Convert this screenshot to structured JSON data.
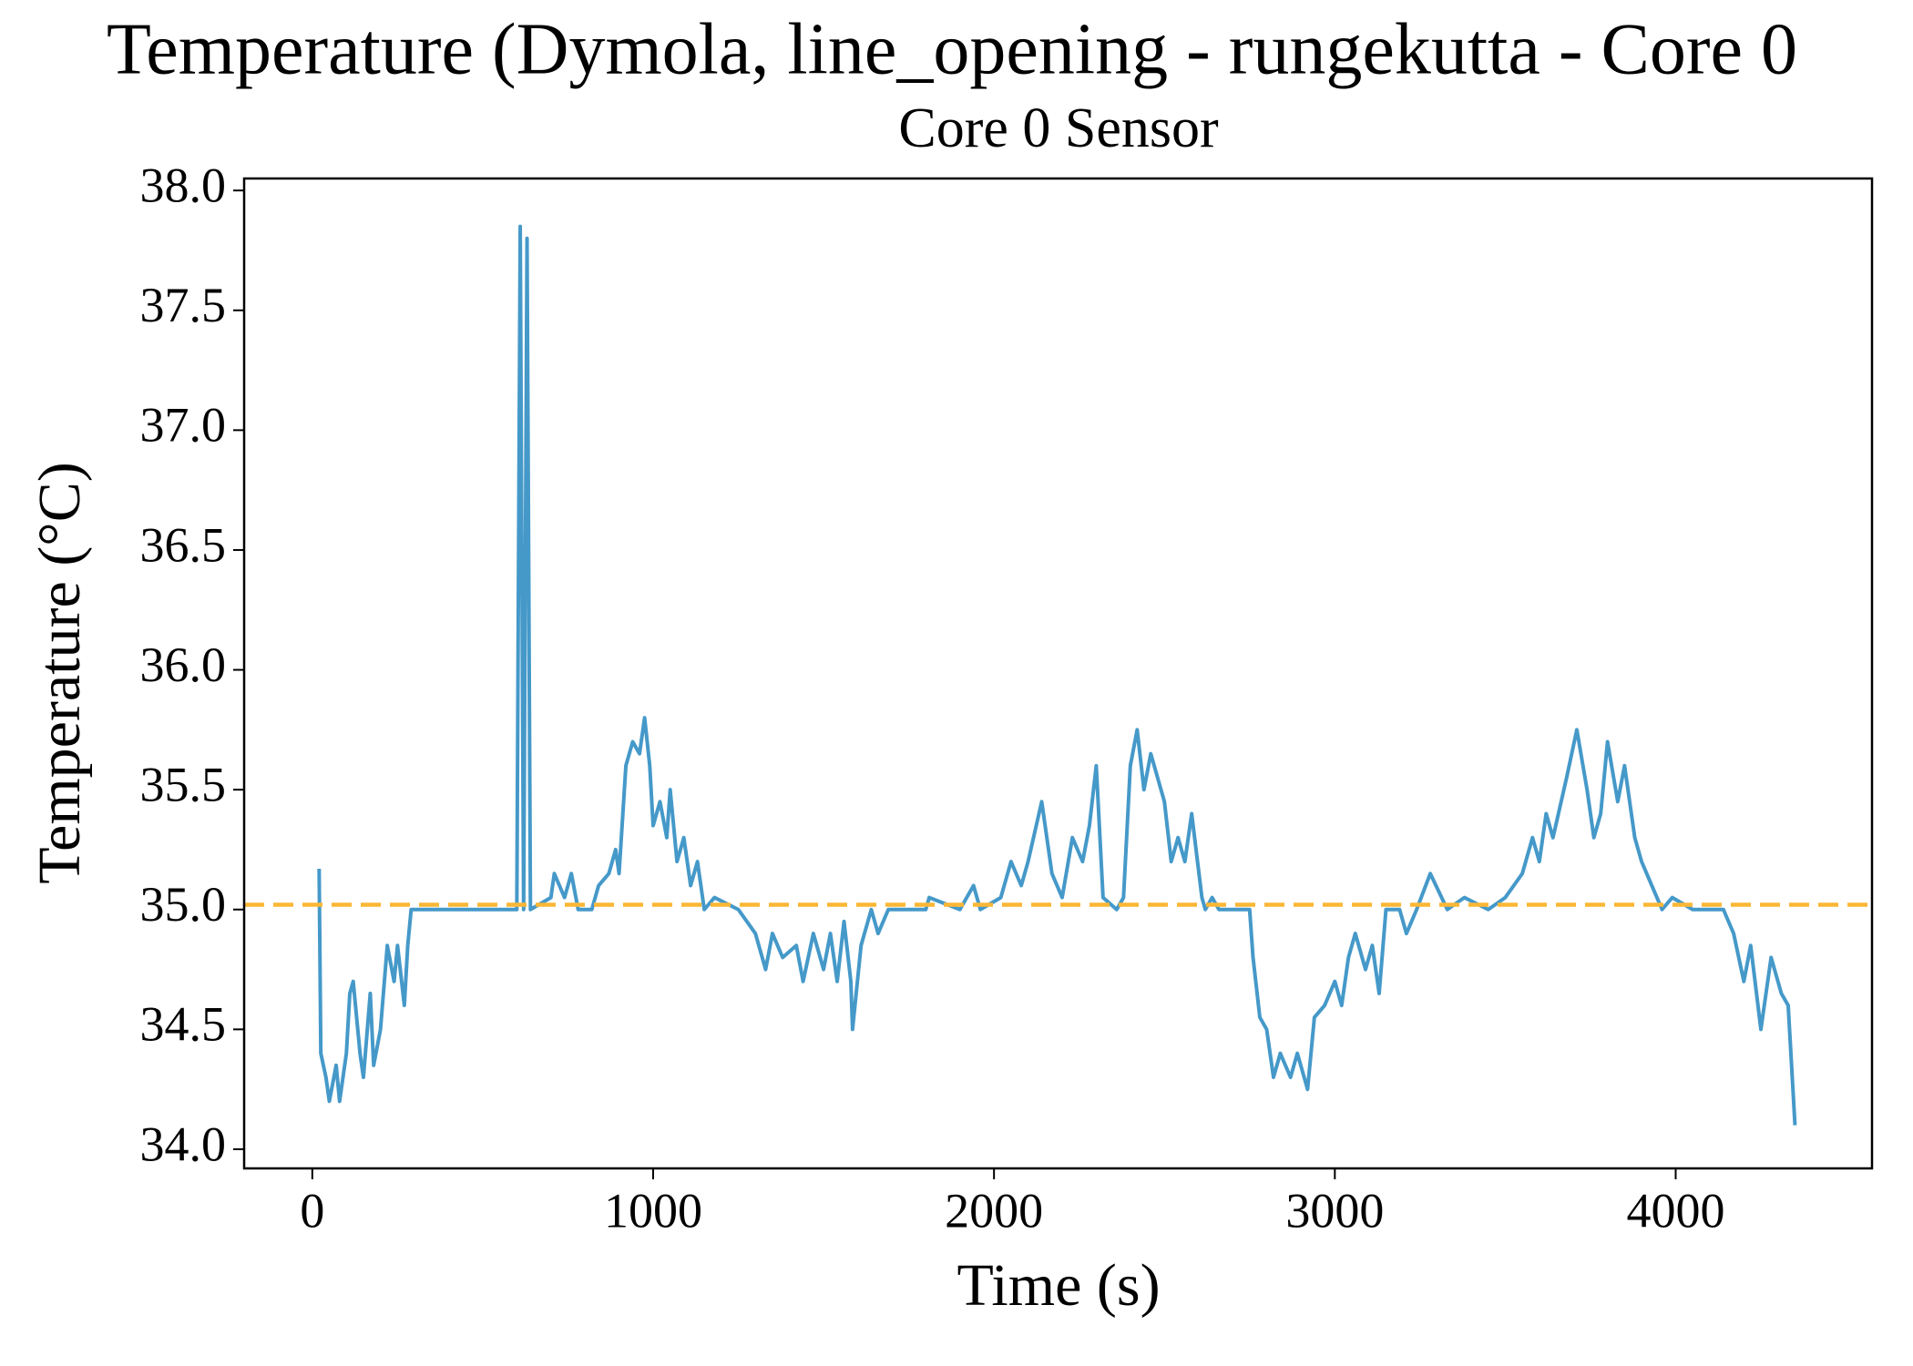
{
  "chart_data": {
    "type": "line",
    "title": "Temperature (Dymola, line_opening - rungekutta - Core 0",
    "subtitle": "Core 0 Sensor",
    "x_label": "Time (s)",
    "y_label": "Temperature (°C)",
    "xlim": [
      -200,
      4576
    ],
    "ylim": [
      33.92,
      38.05
    ],
    "xticks": [
      0,
      1000,
      2000,
      3000,
      4000
    ],
    "yticks": [
      {
        "value": 34,
        "label": "34.0"
      },
      {
        "value": 34.5,
        "label": "34.5"
      },
      {
        "value": 35,
        "label": "35.0"
      },
      {
        "value": 35.5,
        "label": "35.5"
      },
      {
        "value": 36,
        "label": "36.0"
      },
      {
        "value": 36.5,
        "label": "36.5"
      },
      {
        "value": 37,
        "label": "37.0"
      },
      {
        "value": 37.5,
        "label": "37.5"
      },
      {
        "value": 38,
        "label": "38.0"
      }
    ],
    "grid": false,
    "hlines": [
      {
        "y": 35.02,
        "color": "#fbb735",
        "style": "dashed"
      }
    ],
    "x": [
      20,
      25,
      40,
      50,
      70,
      80,
      100,
      110,
      120,
      140,
      150,
      170,
      180,
      200,
      220,
      240,
      250,
      270,
      280,
      290,
      600,
      610,
      620,
      630,
      640,
      700,
      710,
      740,
      760,
      780,
      820,
      840,
      870,
      890,
      900,
      920,
      940,
      960,
      975,
      990,
      1000,
      1020,
      1040,
      1050,
      1070,
      1090,
      1110,
      1130,
      1150,
      1180,
      1250,
      1300,
      1330,
      1350,
      1380,
      1420,
      1440,
      1470,
      1500,
      1520,
      1540,
      1560,
      1580,
      1585,
      1610,
      1640,
      1660,
      1690,
      1800,
      1810,
      1900,
      1940,
      1960,
      2020,
      2050,
      2080,
      2100,
      2140,
      2170,
      2200,
      2230,
      2260,
      2280,
      2300,
      2320,
      2360,
      2380,
      2400,
      2420,
      2440,
      2460,
      2480,
      2500,
      2520,
      2540,
      2560,
      2580,
      2610,
      2620,
      2640,
      2660,
      2750,
      2760,
      2780,
      2800,
      2820,
      2840,
      2870,
      2890,
      2920,
      2940,
      2970,
      3000,
      3020,
      3040,
      3060,
      3090,
      3110,
      3130,
      3150,
      3190,
      3210,
      3240,
      3280,
      3330,
      3380,
      3450,
      3500,
      3550,
      3580,
      3600,
      3620,
      3640,
      3680,
      3710,
      3740,
      3760,
      3780,
      3800,
      3830,
      3850,
      3880,
      3900,
      3930,
      3960,
      3990,
      4050,
      4140,
      4170,
      4200,
      4220,
      4250,
      4280,
      4310,
      4330,
      4350
    ],
    "series": [
      {
        "color": "#4599c9",
        "values": [
          35.17,
          34.4,
          34.3,
          34.2,
          34.35,
          34.2,
          34.4,
          34.65,
          34.7,
          34.4,
          34.3,
          34.65,
          34.35,
          34.5,
          34.85,
          34.7,
          34.85,
          34.6,
          34.85,
          35.0,
          35.0,
          37.85,
          35.0,
          37.8,
          35.0,
          35.05,
          35.15,
          35.05,
          35.15,
          35.0,
          35.0,
          35.1,
          35.15,
          35.25,
          35.15,
          35.6,
          35.7,
          35.65,
          35.8,
          35.6,
          35.35,
          35.45,
          35.3,
          35.5,
          35.2,
          35.3,
          35.1,
          35.2,
          35.0,
          35.05,
          35.0,
          34.9,
          34.75,
          34.9,
          34.8,
          34.85,
          34.7,
          34.9,
          34.75,
          34.9,
          34.7,
          34.95,
          34.7,
          34.5,
          34.85,
          35.0,
          34.9,
          35.0,
          35.0,
          35.05,
          35.0,
          35.1,
          35.0,
          35.05,
          35.2,
          35.1,
          35.2,
          35.45,
          35.15,
          35.05,
          35.3,
          35.2,
          35.35,
          35.6,
          35.05,
          35.0,
          35.05,
          35.6,
          35.75,
          35.5,
          35.65,
          35.55,
          35.45,
          35.2,
          35.3,
          35.2,
          35.4,
          35.05,
          35.0,
          35.05,
          35.0,
          35.0,
          34.8,
          34.55,
          34.5,
          34.3,
          34.4,
          34.3,
          34.4,
          34.25,
          34.55,
          34.6,
          34.7,
          34.6,
          34.8,
          34.9,
          34.75,
          34.85,
          34.65,
          35.0,
          35.0,
          34.9,
          35.0,
          35.15,
          35.0,
          35.05,
          35.0,
          35.05,
          35.15,
          35.3,
          35.2,
          35.4,
          35.3,
          35.55,
          35.75,
          35.5,
          35.3,
          35.4,
          35.7,
          35.45,
          35.6,
          35.3,
          35.2,
          35.1,
          35.0,
          35.05,
          35.0,
          35.0,
          34.9,
          34.7,
          34.85,
          34.5,
          34.8,
          34.65,
          34.6,
          34.1
        ]
      }
    ]
  }
}
